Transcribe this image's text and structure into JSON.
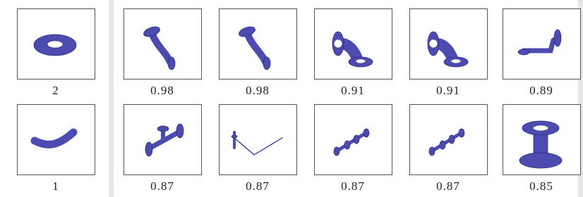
{
  "rows": [
    {
      "items": [
        {
          "label": "2"
        },
        {
          "label": "0.98"
        },
        {
          "label": "0.98"
        },
        {
          "label": "0.91"
        },
        {
          "label": "0.91"
        },
        {
          "label": "0.89"
        }
      ]
    },
    {
      "items": [
        {
          "label": "1"
        },
        {
          "label": "0.87"
        },
        {
          "label": "0.87"
        },
        {
          "label": "0.87"
        },
        {
          "label": "0.87"
        },
        {
          "label": "0.85"
        }
      ]
    }
  ]
}
